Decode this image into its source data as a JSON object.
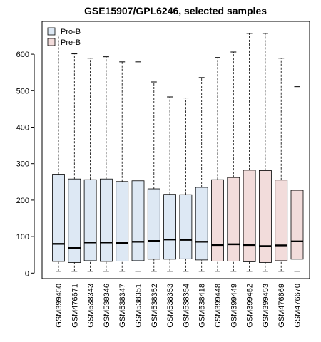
{
  "chart_data": {
    "type": "boxplot",
    "title": "GSE15907/GPL6246, selected samples",
    "xlabel": "",
    "ylabel": "",
    "ylim": [
      -15,
      690
    ],
    "yticks": [
      0,
      100,
      200,
      300,
      400,
      500,
      600
    ],
    "grid": false,
    "legend_position": "top-left",
    "groups": [
      {
        "name": "Pro-B",
        "color": "#dde8f4"
      },
      {
        "name": "Pre-B",
        "color": "#f2dcdb"
      }
    ],
    "categories": [
      "GSM399450",
      "GSM476671",
      "GSM538343",
      "GSM538346",
      "GSM538347",
      "GSM538351",
      "GSM538352",
      "GSM538353",
      "GSM538354",
      "GSM538418",
      "GSM399448",
      "GSM399449",
      "GSM399452",
      "GSM399453",
      "GSM476669",
      "GSM476670"
    ],
    "group_of_sample": [
      "Pro-B",
      "Pro-B",
      "Pro-B",
      "Pro-B",
      "Pro-B",
      "Pro-B",
      "Pro-B",
      "Pro-B",
      "Pro-B",
      "Pro-B",
      "Pre-B",
      "Pre-B",
      "Pre-B",
      "Pre-B",
      "Pre-B",
      "Pre-B"
    ],
    "boxes": [
      {
        "min": 5,
        "q1": 32,
        "median": 80,
        "q3": 271,
        "max": 650
      },
      {
        "min": 5,
        "q1": 29,
        "median": 69,
        "q3": 258,
        "max": 601
      },
      {
        "min": 5,
        "q1": 34,
        "median": 84,
        "q3": 256,
        "max": 589
      },
      {
        "min": 5,
        "q1": 32,
        "median": 84,
        "q3": 258,
        "max": 593
      },
      {
        "min": 5,
        "q1": 33,
        "median": 83,
        "q3": 251,
        "max": 579
      },
      {
        "min": 5,
        "q1": 34,
        "median": 86,
        "q3": 253,
        "max": 579
      },
      {
        "min": 5,
        "q1": 38,
        "median": 88,
        "q3": 231,
        "max": 524
      },
      {
        "min": 5,
        "q1": 38,
        "median": 92,
        "q3": 216,
        "max": 483
      },
      {
        "min": 5,
        "q1": 39,
        "median": 91,
        "q3": 215,
        "max": 480
      },
      {
        "min": 5,
        "q1": 36,
        "median": 86,
        "q3": 235,
        "max": 536
      },
      {
        "min": 5,
        "q1": 33,
        "median": 77,
        "q3": 256,
        "max": 591
      },
      {
        "min": 5,
        "q1": 33,
        "median": 79,
        "q3": 262,
        "max": 606
      },
      {
        "min": 5,
        "q1": 31,
        "median": 77,
        "q3": 282,
        "max": 657
      },
      {
        "min": 5,
        "q1": 29,
        "median": 74,
        "q3": 281,
        "max": 657
      },
      {
        "min": 5,
        "q1": 34,
        "median": 76,
        "q3": 255,
        "max": 589
      },
      {
        "min": 5,
        "q1": 38,
        "median": 87,
        "q3": 227,
        "max": 511
      }
    ]
  }
}
